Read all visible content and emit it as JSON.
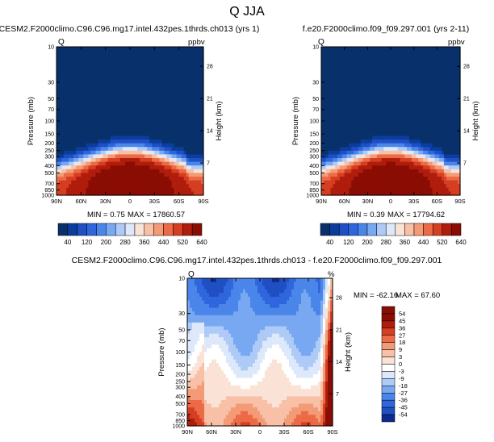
{
  "figure_title": "Q JJA",
  "panels": [
    {
      "title": "CESM2.F2000climo.C96.C96.mg17.intel.432pes.1thrds.ch013 (yrs 1)",
      "var_label": "Q",
      "units": "ppbv",
      "min_text": "MIN =   0.75",
      "max_text": "MAX =  17860.57"
    },
    {
      "title": "f.e20.F2000climo.f09_f09.297.001 (yrs 2-11)",
      "var_label": "Q",
      "units": "ppbv",
      "min_text": "MIN =   0.39",
      "max_text": "MAX =  17794.62"
    },
    {
      "title": "CESM2.F2000climo.C96.C96.mg17.intel.432pes.1thrds.ch013 - f.e20.F2000climo.f09_f09.297.001",
      "var_label": "Q",
      "units": "%",
      "min_text": "MIN = -62.16",
      "max_text": "MAX =  67.60"
    }
  ],
  "chart_data": [
    {
      "type": "heatmap",
      "title": "CESM2.F2000climo.C96.C96.mg17.intel.432pes.1thrds.ch013 (yrs 1)",
      "xlabel": "",
      "ylabel": "Pressure (mb)",
      "y2label": "Height (km)",
      "x_ticks": [
        "90N",
        "60N",
        "30N",
        "0",
        "30S",
        "60S",
        "90S"
      ],
      "y_ticks": [
        "10",
        "30",
        "50",
        "70",
        "100",
        "150",
        "200",
        "250",
        "300",
        "400",
        "500",
        "700",
        "850",
        "1000"
      ],
      "y2_ticks": [
        "28",
        "21",
        "14",
        "7"
      ],
      "colorbar_levels": [
        "40",
        "120",
        "200",
        "280",
        "360",
        "440",
        "520",
        "640"
      ],
      "min": 0.75,
      "max": 17860.57,
      "units": "ppbv"
    },
    {
      "type": "heatmap",
      "title": "f.e20.F2000climo.f09_f09.297.001 (yrs 2-11)",
      "xlabel": "",
      "ylabel": "Pressure (mb)",
      "y2label": "Height (km)",
      "x_ticks": [
        "90N",
        "60N",
        "30N",
        "0",
        "30S",
        "60S",
        "90S"
      ],
      "y_ticks": [
        "10",
        "30",
        "50",
        "70",
        "100",
        "150",
        "200",
        "250",
        "300",
        "400",
        "500",
        "700",
        "850",
        "1000"
      ],
      "y2_ticks": [
        "28",
        "21",
        "14",
        "7"
      ],
      "colorbar_levels": [
        "40",
        "120",
        "200",
        "280",
        "360",
        "440",
        "520",
        "640"
      ],
      "min": 0.39,
      "max": 17794.62,
      "units": "ppbv"
    },
    {
      "type": "heatmap",
      "title": "CESM2.F2000climo.C96.C96.mg17.intel.432pes.1thrds.ch013 - f.e20.F2000climo.f09_f09.297.001",
      "xlabel": "",
      "ylabel": "Pressure (mb)",
      "y2label": "Height (km)",
      "x_ticks": [
        "90N",
        "60N",
        "30N",
        "0",
        "30S",
        "60S",
        "90S"
      ],
      "y_ticks": [
        "10",
        "30",
        "50",
        "70",
        "100",
        "150",
        "200",
        "250",
        "300",
        "400",
        "500",
        "700",
        "850",
        "1000"
      ],
      "y2_ticks": [
        "28",
        "21",
        "14",
        "7"
      ],
      "colorbar_levels": [
        "54",
        "45",
        "36",
        "27",
        "18",
        "9",
        "3",
        "0",
        "-3",
        "-9",
        "-18",
        "-27",
        "-36",
        "-45",
        "-54"
      ],
      "min": -62.16,
      "max": 67.6,
      "units": "%"
    }
  ],
  "palettes": {
    "abs": [
      "#08306b",
      "#0b3d9c",
      "#1f4fc2",
      "#2f66dd",
      "#4a86ea",
      "#78a8f2",
      "#aecbf7",
      "#dde8fa",
      "#fbe2d6",
      "#f8c0a6",
      "#f39a76",
      "#ec6a46",
      "#d63e22",
      "#b01d0c",
      "#8a0d03"
    ],
    "diff": [
      "#8a0d03",
      "#b01d0c",
      "#d63e22",
      "#ec6a46",
      "#f39a76",
      "#f8c0a6",
      "#fbe2d6",
      "#ffffff",
      "#dde8fa",
      "#aecbf7",
      "#78a8f2",
      "#4a86ea",
      "#2f66dd",
      "#1f4fc2",
      "#0b2a8a"
    ]
  }
}
